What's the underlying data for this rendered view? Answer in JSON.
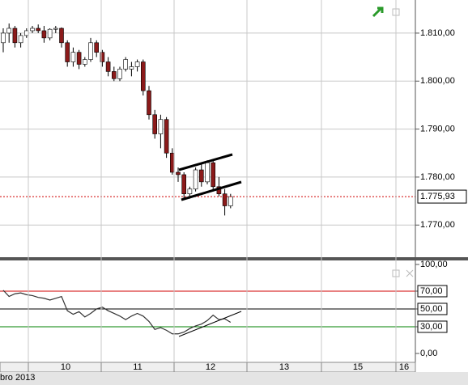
{
  "chart_data": [
    {
      "type": "candlestick",
      "open": [
        1808,
        1810,
        1811,
        1808,
        1809.5,
        1810.5,
        1811,
        1810.5,
        1809,
        1810.8,
        1811,
        1808,
        1804,
        1806,
        1803.5,
        1804.5,
        1808,
        1806,
        1804,
        1802,
        1800.5,
        1802.5,
        1802.5,
        1803,
        1804,
        1798,
        1793,
        1789,
        1792,
        1785,
        1781,
        1780.5,
        1776.5,
        1777.5,
        1781.5,
        1779,
        1783,
        1778,
        1776.5,
        1774
      ],
      "high": [
        1811,
        1812,
        1811.5,
        1810,
        1811,
        1811.5,
        1811.8,
        1811.5,
        1811,
        1811.5,
        1811.2,
        1808.5,
        1807,
        1806.5,
        1805,
        1809,
        1808.5,
        1806.5,
        1805,
        1803,
        1803,
        1805,
        1804,
        1804.5,
        1804.5,
        1799,
        1794,
        1793,
        1792.5,
        1786,
        1782,
        1781,
        1778,
        1782,
        1783,
        1783.5,
        1783.5,
        1780,
        1777.5,
        1776.5
      ],
      "low": [
        1806,
        1808,
        1807,
        1807,
        1809,
        1810,
        1810,
        1808,
        1808.5,
        1810,
        1807,
        1803,
        1803,
        1802.5,
        1803,
        1804,
        1805,
        1803,
        1801,
        1800,
        1800,
        1802,
        1801,
        1802,
        1797,
        1792,
        1788,
        1786,
        1784,
        1780.5,
        1779,
        1775.5,
        1775.5,
        1777,
        1778,
        1778.5,
        1777,
        1776,
        1772,
        1773.5
      ],
      "close": [
        1810,
        1811,
        1808,
        1809.5,
        1810.5,
        1811,
        1810.5,
        1809,
        1810.8,
        1811,
        1808,
        1804,
        1806,
        1803.5,
        1804.5,
        1808,
        1806,
        1804,
        1802,
        1800.5,
        1802.5,
        1804.5,
        1803,
        1804,
        1798,
        1793,
        1789,
        1792,
        1785,
        1781,
        1780.5,
        1776.5,
        1777.5,
        1781.5,
        1779,
        1783,
        1778,
        1776.5,
        1774,
        1775.93
      ],
      "up_color": "#ffffff",
      "down_color": "#8b1a1a",
      "ylim": [
        1763.3,
        1816.9
      ],
      "yticks": [
        {
          "value": 1770,
          "label": "1.770,00"
        },
        {
          "value": 1780,
          "label": "1.780,00"
        },
        {
          "value": 1790,
          "label": "1.790,00"
        },
        {
          "value": 1800,
          "label": "1.800,00"
        },
        {
          "value": 1810,
          "label": "1.810,00"
        }
      ],
      "last_value": {
        "value": 1775.93,
        "label": "1.775,93"
      },
      "grid": true
    },
    {
      "type": "line",
      "values": [
        71,
        64,
        67,
        68,
        66,
        65,
        63,
        62,
        60,
        62,
        64,
        48,
        44,
        47,
        41,
        45,
        50,
        52,
        48,
        45,
        42,
        38,
        42,
        45,
        42,
        36,
        27,
        29,
        26,
        22,
        22,
        24,
        28,
        31,
        33,
        37,
        43,
        38,
        39,
        35
      ],
      "color": "#333333",
      "ylim": [
        -10,
        104.5
      ],
      "yticks": [
        {
          "value": 0,
          "label": "0,00"
        },
        {
          "value": 30,
          "label": "30,00"
        },
        {
          "value": 50,
          "label": "50,00"
        },
        {
          "value": 70,
          "label": "70,00"
        },
        {
          "value": 100,
          "label": "100,00"
        }
      ],
      "levels": [
        {
          "value": 70,
          "color": "#d00000"
        },
        {
          "value": 50,
          "color": "#000000"
        },
        {
          "value": 30,
          "color": "#008000"
        }
      ]
    }
  ],
  "day_labels": [
    "10",
    "11",
    "12",
    "13",
    "15",
    "16"
  ],
  "date_label": "bro 2013"
}
